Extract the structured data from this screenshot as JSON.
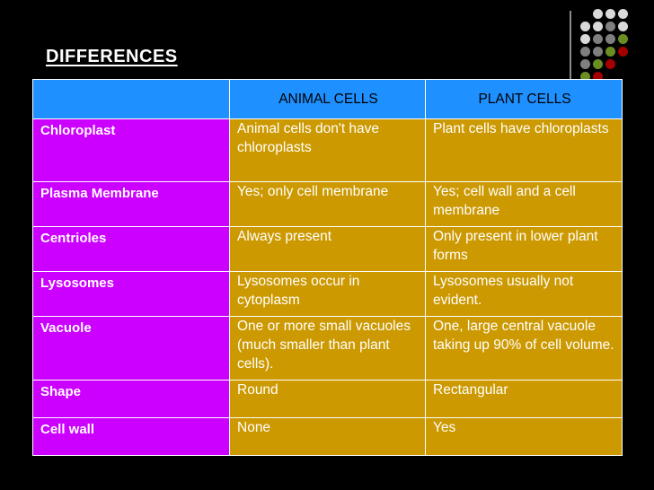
{
  "slide": {
    "title": "DIFFERENCES",
    "decor_colors": [
      "#d9d9d9",
      "#7f7f7f",
      "#6b8e23",
      "#a50000"
    ]
  },
  "table": {
    "headers": [
      "",
      "ANIMAL CELLS",
      "PLANT CELLS"
    ],
    "rows": [
      {
        "feature": "Chloroplast",
        "animal": "Animal cells don't have chloroplasts",
        "plant": "Plant cells have chloroplasts"
      },
      {
        "feature": "Plasma Membrane",
        "animal": "Yes; only cell membrane",
        "plant": "Yes; cell wall and a cell membrane"
      },
      {
        "feature": "Centrioles",
        "animal": "Always present",
        "plant": "Only present in lower plant forms"
      },
      {
        "feature": "Lysosomes",
        "animal": "Lysosomes occur in cytoplasm",
        "plant": "Lysosomes usually not evident."
      },
      {
        "feature": "Vacuole",
        "animal": "One or more small vacuoles (much smaller than plant cells).",
        "plant": "One, large central vacuole taking up 90% of cell volume."
      },
      {
        "feature": "Shape",
        "animal": "Round",
        "plant": "Rectangular"
      },
      {
        "feature": "Cell wall",
        "animal": "None",
        "plant": "Yes"
      }
    ]
  }
}
